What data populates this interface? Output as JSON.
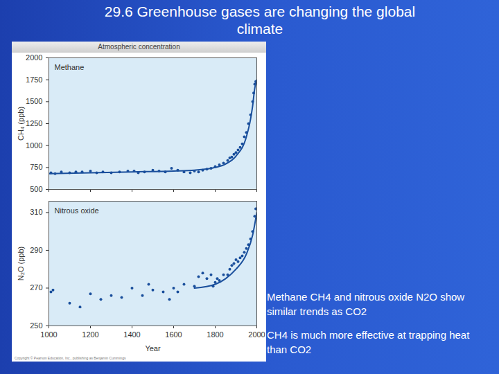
{
  "slide": {
    "title": "29.6 Greenhouse gases are changing the global climate",
    "panel_title": "Atmospheric concentration",
    "copyright": "Copyright © Pearson Education, Inc., publishing as Benjamin Cummings",
    "bullets": [
      "Methane CH4 and nitrous oxide N2O show similar trends as CO2",
      "CH4 is much more effective at trapping heat than CO2"
    ]
  },
  "chart_data": [
    {
      "type": "scatter",
      "title": "Methane",
      "ylabel": "CH₄ (ppb)",
      "xlim": [
        1000,
        2000
      ],
      "xticks": [
        1000,
        1200,
        1400,
        1600,
        1800,
        2000
      ],
      "ylim": [
        500,
        2000
      ],
      "yticks": [
        500,
        750,
        1000,
        1250,
        1500,
        1750,
        2000
      ],
      "tick_labels": "y",
      "grid": false,
      "series": [
        {
          "type": "scatter",
          "marker": "circle",
          "color": "#1a4f9c",
          "x": [
            1010,
            1030,
            1060,
            1100,
            1130,
            1160,
            1200,
            1230,
            1260,
            1300,
            1340,
            1380,
            1410,
            1430,
            1460,
            1500,
            1530,
            1560,
            1590,
            1620,
            1650,
            1680,
            1700,
            1720,
            1740,
            1760,
            1780,
            1800,
            1820,
            1840,
            1860,
            1870,
            1880,
            1890,
            1900,
            1910,
            1920,
            1930,
            1940,
            1950,
            1960,
            1970,
            1980,
            1985,
            1990,
            1995
          ],
          "values": [
            690,
            680,
            700,
            690,
            700,
            700,
            710,
            690,
            700,
            690,
            700,
            710,
            710,
            690,
            700,
            720,
            710,
            700,
            740,
            720,
            700,
            690,
            710,
            700,
            720,
            730,
            740,
            760,
            780,
            800,
            830,
            860,
            870,
            900,
            920,
            950,
            980,
            1020,
            1100,
            1150,
            1250,
            1350,
            1500,
            1600,
            1700,
            1730
          ]
        },
        {
          "type": "line",
          "line_style": "solid",
          "color": "#1a4f9c",
          "x": [
            1000,
            1200,
            1400,
            1600,
            1700,
            1800,
            1850,
            1900,
            1950,
            1970,
            1980,
            1990,
            2000
          ],
          "values": [
            680,
            690,
            700,
            710,
            720,
            750,
            790,
            880,
            1100,
            1300,
            1450,
            1650,
            1750
          ]
        }
      ]
    },
    {
      "type": "scatter",
      "title": "Nitrous oxide",
      "xlabel": "Year",
      "ylabel": "N₂O (ppb)",
      "xlim": [
        1000,
        2000
      ],
      "xticks": [
        1000,
        1200,
        1400,
        1600,
        1800,
        2000
      ],
      "ylim": [
        250,
        316
      ],
      "yticks": [
        250,
        270,
        290,
        310
      ],
      "grid": false,
      "series": [
        {
          "type": "scatter",
          "marker": "circle",
          "color": "#1a4f9c",
          "x": [
            1010,
            1020,
            1100,
            1150,
            1200,
            1250,
            1300,
            1350,
            1400,
            1450,
            1480,
            1500,
            1550,
            1580,
            1600,
            1620,
            1650,
            1700,
            1720,
            1740,
            1760,
            1780,
            1790,
            1800,
            1810,
            1820,
            1840,
            1860,
            1870,
            1880,
            1890,
            1900,
            1910,
            1920,
            1930,
            1940,
            1950,
            1960,
            1970,
            1980,
            1990,
            1995
          ],
          "values": [
            268,
            269,
            262,
            260,
            267,
            264,
            266,
            265,
            270,
            266,
            272,
            269,
            268,
            264,
            270,
            268,
            272,
            271,
            276,
            278,
            275,
            277,
            271,
            273,
            275,
            274,
            277,
            277,
            280,
            282,
            283,
            285,
            284,
            286,
            287,
            289,
            291,
            293,
            296,
            300,
            308,
            312
          ]
        },
        {
          "type": "line",
          "line_style": "solid",
          "color": "#1a4f9c",
          "x": [
            1700,
            1800,
            1850,
            1900,
            1950,
            1980,
            2000
          ],
          "values": [
            270,
            272,
            275,
            280,
            288,
            298,
            310
          ]
        }
      ]
    }
  ]
}
